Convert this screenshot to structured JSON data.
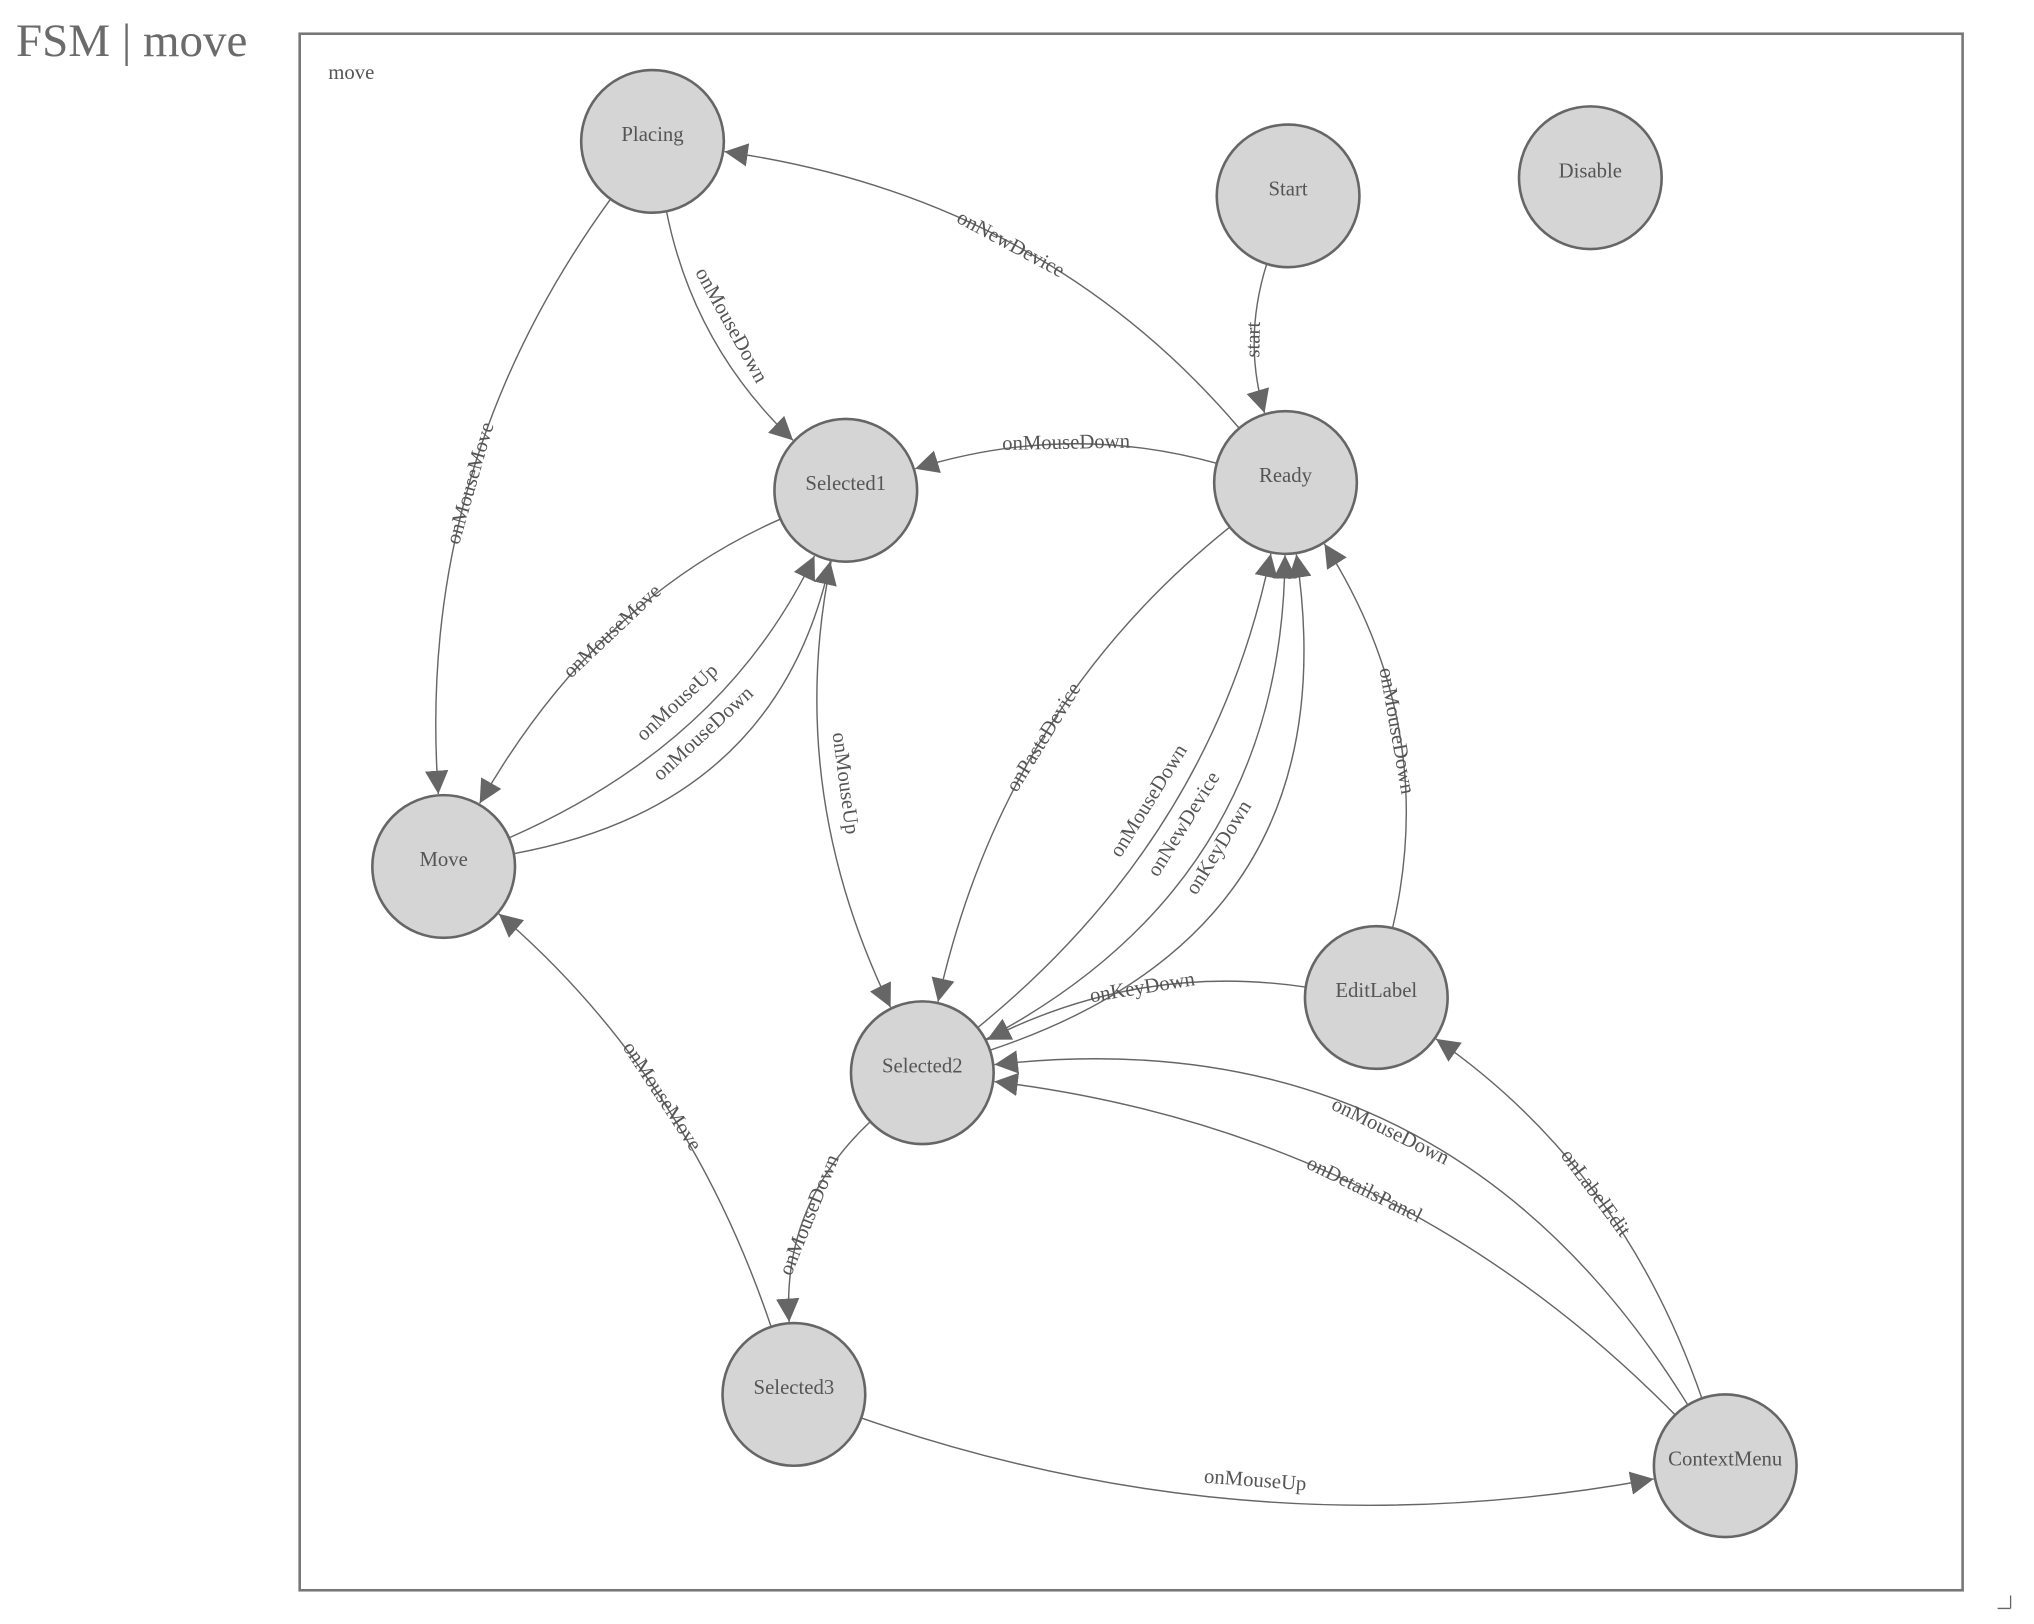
{
  "page_title": "FSM | move",
  "diagram": {
    "frame_label": "move",
    "colors": {
      "node_fill": "#d5d5d5",
      "stroke": "#666666",
      "text": "#555555"
    },
    "nodes": [
      {
        "id": "Placing",
        "label": "Placing"
      },
      {
        "id": "Start",
        "label": "Start"
      },
      {
        "id": "Disable",
        "label": "Disable"
      },
      {
        "id": "Selected1",
        "label": "Selected1"
      },
      {
        "id": "Ready",
        "label": "Ready"
      },
      {
        "id": "Move",
        "label": "Move"
      },
      {
        "id": "Selected2",
        "label": "Selected2"
      },
      {
        "id": "EditLabel",
        "label": "EditLabel"
      },
      {
        "id": "Selected3",
        "label": "Selected3"
      },
      {
        "id": "ContextMenu",
        "label": "ContextMenu"
      }
    ],
    "edges": [
      {
        "from": "Start",
        "to": "Ready",
        "label": "start"
      },
      {
        "from": "Ready",
        "to": "Placing",
        "label": "onNewDevice"
      },
      {
        "from": "Placing",
        "to": "Selected1",
        "label": "onMouseDown"
      },
      {
        "from": "Placing",
        "to": "Move",
        "label": "onMouseMove"
      },
      {
        "from": "Ready",
        "to": "Selected1",
        "label": "onMouseDown"
      },
      {
        "from": "Selected1",
        "to": "Move",
        "label": "onMouseMove"
      },
      {
        "from": "Move",
        "to": "Selected1",
        "label": "onMouseUp"
      },
      {
        "from": "Move",
        "to": "Selected1",
        "label": "onMouseDown"
      },
      {
        "from": "Selected1",
        "to": "Selected2",
        "label": "onMouseUp"
      },
      {
        "from": "Ready",
        "to": "Selected2",
        "label": "onPasteDevice"
      },
      {
        "from": "Selected2",
        "to": "Ready",
        "label": "onMouseDown"
      },
      {
        "from": "Selected2",
        "to": "Ready",
        "label": "onNewDevice"
      },
      {
        "from": "Selected2",
        "to": "Ready",
        "label": "onKeyDown"
      },
      {
        "from": "EditLabel",
        "to": "Ready",
        "label": "onMouseDown"
      },
      {
        "from": "EditLabel",
        "to": "Selected2",
        "label": "onKeyDown"
      },
      {
        "from": "ContextMenu",
        "to": "Selected2",
        "label": "onMouseDown"
      },
      {
        "from": "ContextMenu",
        "to": "Selected2",
        "label": "onDetailsPanel"
      },
      {
        "from": "ContextMenu",
        "to": "EditLabel",
        "label": "onLabelEdit"
      },
      {
        "from": "Selected2",
        "to": "Selected3",
        "label": "onMouseDown"
      },
      {
        "from": "Selected3",
        "to": "Move",
        "label": "onMouseMove"
      },
      {
        "from": "Selected3",
        "to": "ContextMenu",
        "label": "onMouseUp"
      }
    ]
  }
}
